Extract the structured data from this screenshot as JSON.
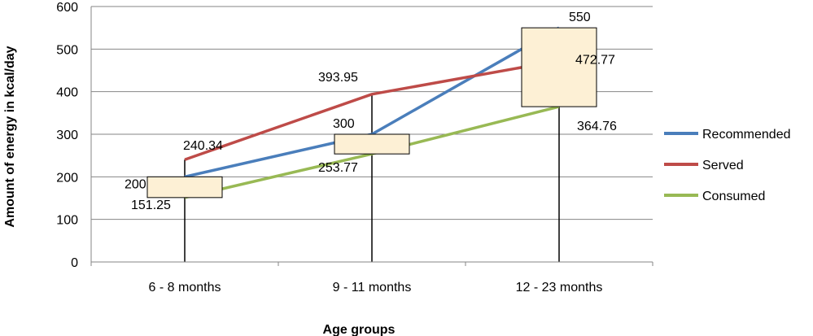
{
  "chart_data": {
    "type": "line",
    "categories": [
      "6 - 8 months",
      "9 - 11 months",
      "12 - 23 months"
    ],
    "series": [
      {
        "name": "Recommended",
        "values": [
          200,
          300,
          550
        ],
        "color": "#4a7ebb"
      },
      {
        "name": "Served",
        "values": [
          240.34,
          393.95,
          472.77
        ],
        "color": "#be4b48"
      },
      {
        "name": "Consumed",
        "values": [
          151.25,
          253.77,
          364.76
        ],
        "color": "#98b954"
      }
    ],
    "data_labels": [
      [
        "200",
        "300",
        "550"
      ],
      [
        "240.34",
        "393.95",
        "472.77"
      ],
      [
        "151.25",
        "253.77",
        "364.76"
      ]
    ],
    "high_low_lines": true,
    "up_down_bars": true,
    "up_down_bar_color": "#fdf0d5",
    "xlabel": "Age groups",
    "ylabel": "Amount of energy in kcal/day",
    "ylim": [
      0,
      600
    ],
    "yticks": [
      "0",
      "100",
      "200",
      "300",
      "400",
      "500",
      "600"
    ],
    "grid": true,
    "legend_position": "right"
  }
}
